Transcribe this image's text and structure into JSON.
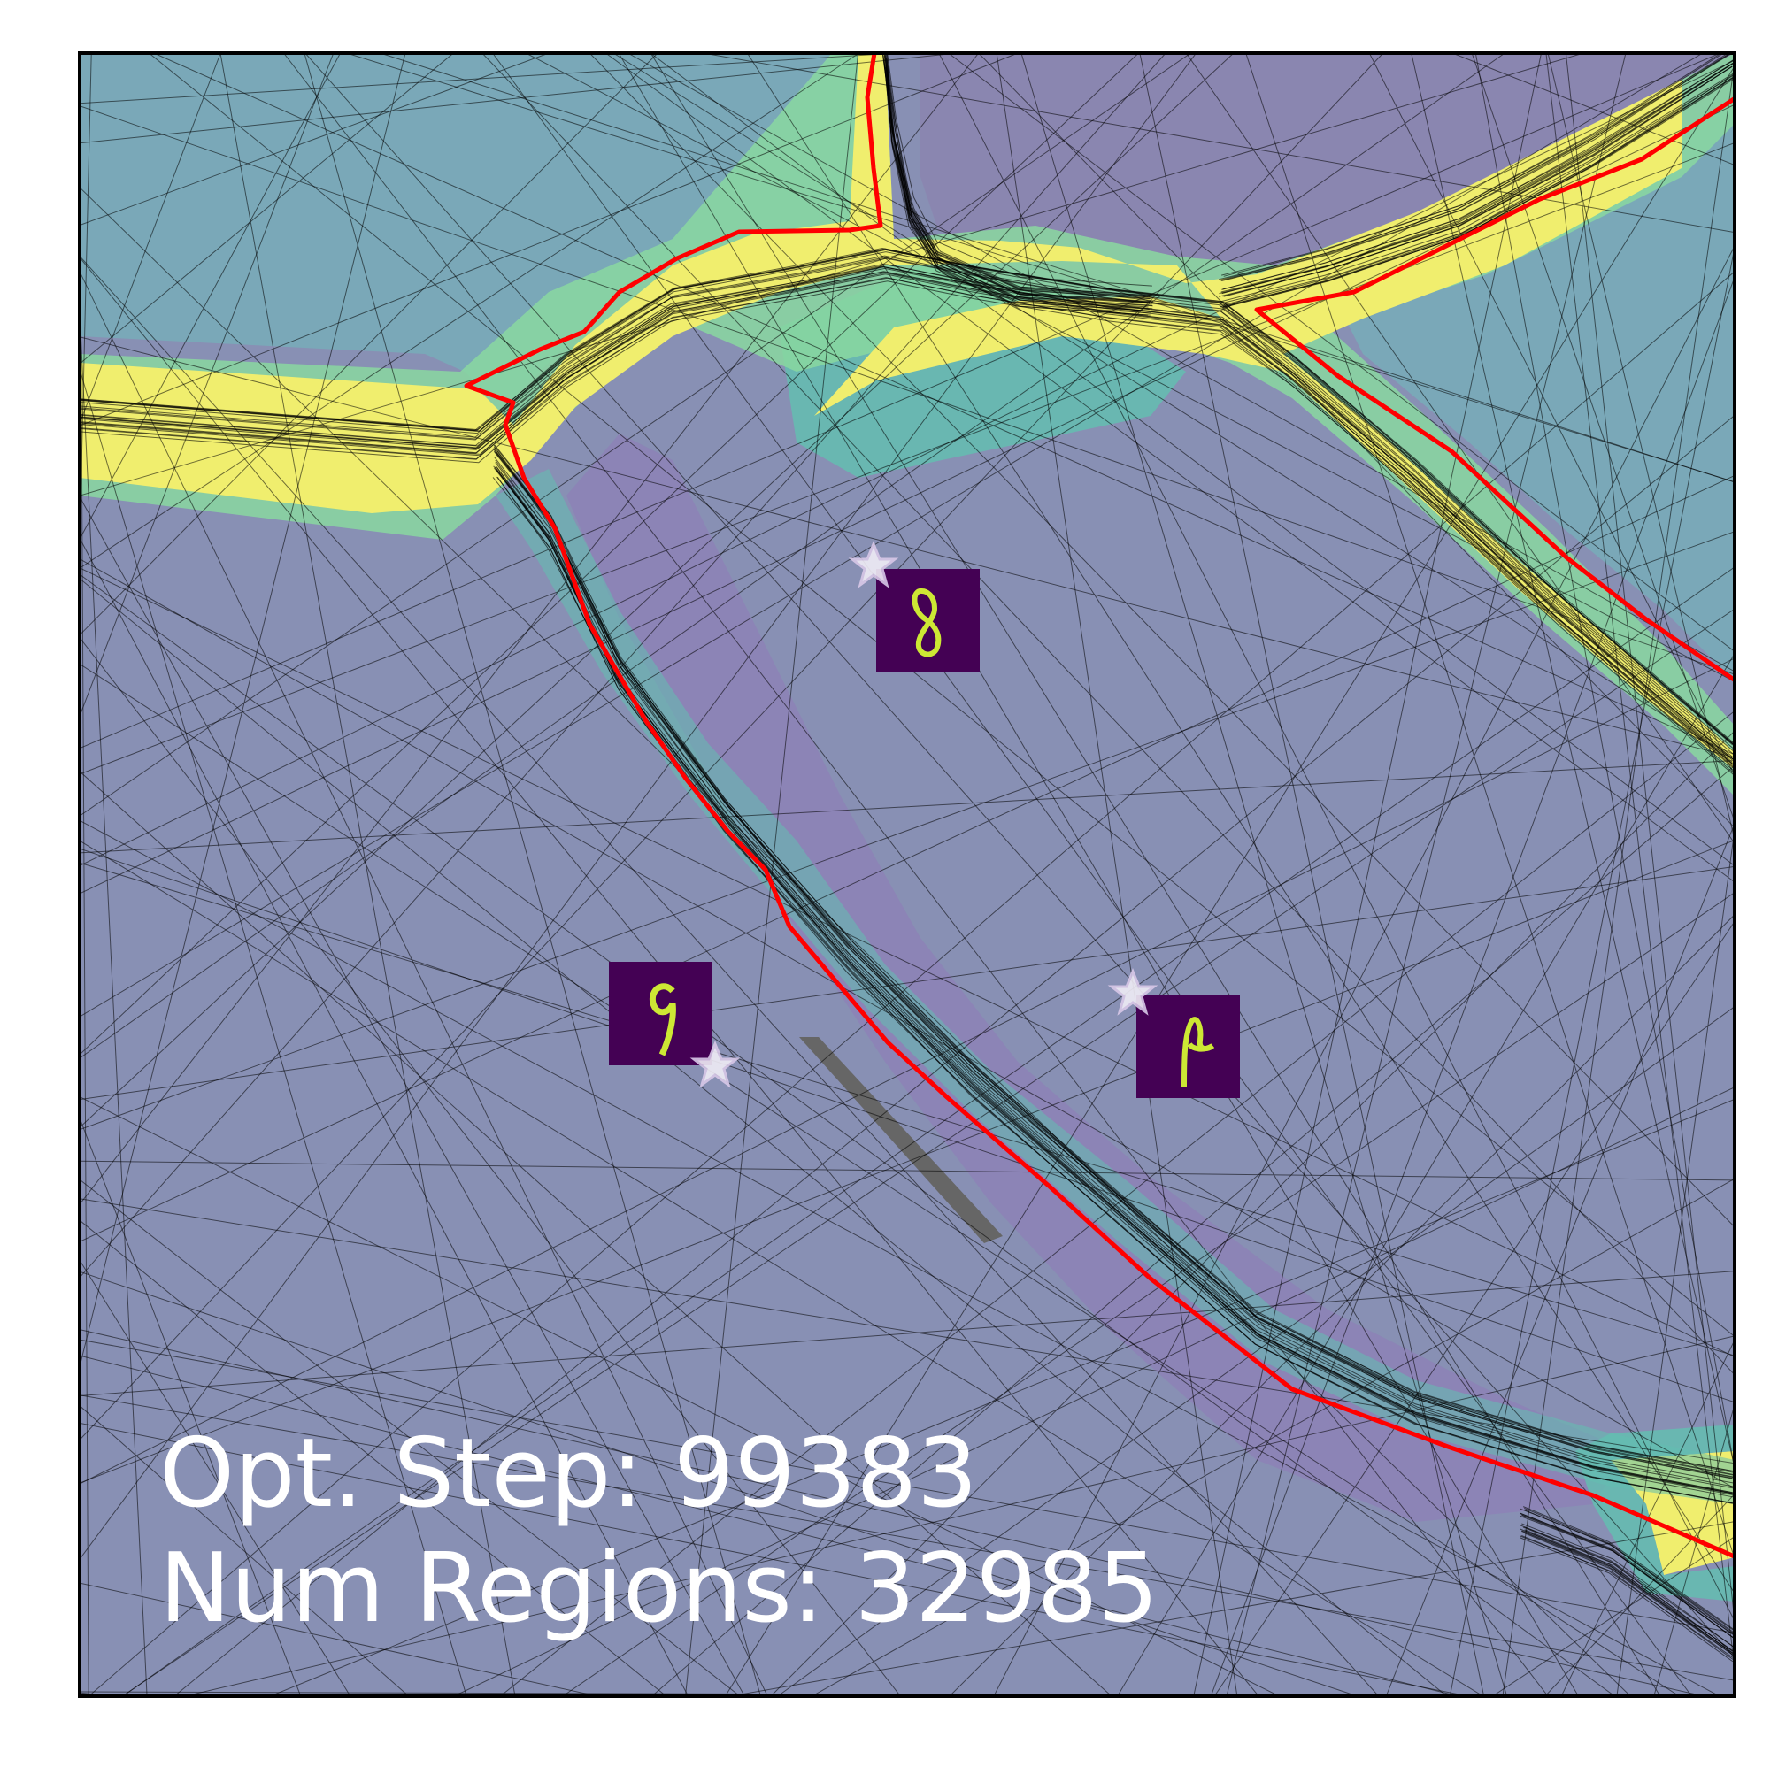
{
  "overlay_text": {
    "line1": "Opt. Step: 99383",
    "line2": "Num Regions: 32985"
  },
  "colors": {
    "background_region": "#8890b4",
    "upper_left_region": "#7aa8b8",
    "band_yellow": "#f0ee6e",
    "band_green": "#8ad8a0",
    "band_teal": "#62c0b0",
    "purple_region": "#8a86b2",
    "boundary": "#ff0000",
    "polytope_lines": "#000000",
    "frame": "#000000",
    "star": "#f0ecf6",
    "digit_bg": "#440154",
    "digit_stroke": "#cde834"
  },
  "digit_thumbnails": [
    {
      "name": "digit-8",
      "digit": "8"
    },
    {
      "name": "digit-9",
      "digit": "9"
    },
    {
      "name": "digit-p",
      "digit": "p"
    }
  ],
  "icons": [
    "star-icon"
  ]
}
